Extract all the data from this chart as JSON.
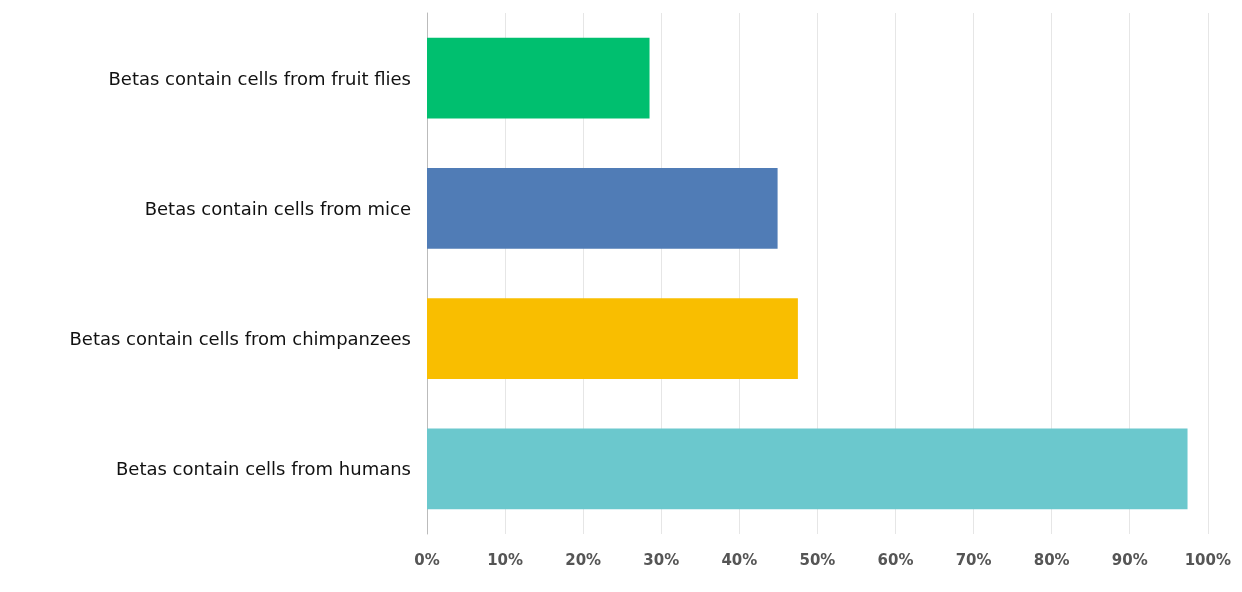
{
  "chart_data": {
    "type": "bar",
    "orientation": "horizontal",
    "categories": [
      "Betas contain cells from fruit flies",
      "Betas contain cells from mice",
      "Betas contain cells from chimpanzees",
      "Betas contain cells from humans"
    ],
    "values": [
      28.5,
      44.9,
      47.5,
      97.4
    ],
    "colors": [
      "#00bf6f",
      "#507cb6",
      "#f9be00",
      "#6bc8cd"
    ],
    "xlim": [
      0,
      100
    ],
    "xticks": [
      {
        "value": 0,
        "label": "0%"
      },
      {
        "value": 10,
        "label": "10%"
      },
      {
        "value": 20,
        "label": "20%"
      },
      {
        "value": 30,
        "label": "30%"
      },
      {
        "value": 40,
        "label": "40%"
      },
      {
        "value": 50,
        "label": "50%"
      },
      {
        "value": 60,
        "label": "60%"
      },
      {
        "value": 70,
        "label": "70%"
      },
      {
        "value": 80,
        "label": "80%"
      },
      {
        "value": 90,
        "label": "90%"
      },
      {
        "value": 100,
        "label": "100%"
      }
    ],
    "grid": "x"
  }
}
